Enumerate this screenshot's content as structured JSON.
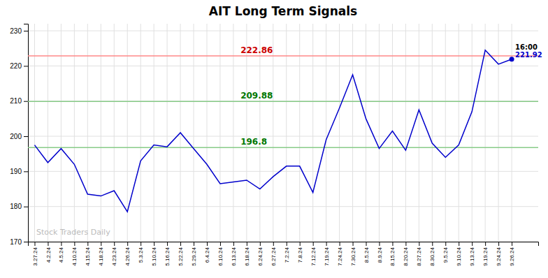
{
  "chart_data": {
    "type": "line",
    "title": "AIT Long Term Signals",
    "categories": [
      "3.27.24",
      "4.2.24",
      "4.5.24",
      "4.10.24",
      "4.15.24",
      "4.18.24",
      "4.23.24",
      "4.26.24",
      "5.3.24",
      "5.10.24",
      "5.16.24",
      "5.22.24",
      "5.29.24",
      "6.4.24",
      "6.10.24",
      "6.13.24",
      "6.18.24",
      "6.24.24",
      "6.27.24",
      "7.2.24",
      "7.8.24",
      "7.12.24",
      "7.19.24",
      "7.24.24",
      "7.30.24",
      "8.5.24",
      "8.9.24",
      "8.15.24",
      "8.20.24",
      "8.27.24",
      "8.30.24",
      "9.5.24",
      "9.10.24",
      "9.13.24",
      "9.19.24",
      "9.24.24",
      "9.26.24"
    ],
    "values": [
      197.5,
      192.5,
      196.5,
      192.0,
      183.5,
      183.0,
      184.5,
      178.5,
      193.0,
      197.5,
      197.0,
      201.0,
      196.5,
      192.0,
      186.5,
      187.0,
      187.5,
      185.0,
      188.5,
      191.5,
      191.5,
      184.0,
      199.0,
      208.0,
      217.5,
      205.0,
      196.5,
      201.5,
      196.0,
      207.5,
      198.0,
      194.0,
      197.5,
      207.0,
      224.5,
      220.5,
      221.92
    ],
    "color": "#0000cc",
    "ylim": [
      170,
      232
    ],
    "yticks": [
      170,
      180,
      190,
      200,
      210,
      220,
      230
    ],
    "grid": true,
    "reference_lines": [
      {
        "value": 222.86,
        "color": "#ff8888",
        "label_color": "#cc0000"
      },
      {
        "value": 209.88,
        "color": "#88cc88",
        "label_color": "#007700"
      },
      {
        "value": 196.8,
        "color": "#88cc88",
        "label_color": "#007700"
      }
    ],
    "end_label": "16:00",
    "end_value": 221.92,
    "watermark": "Stock Traders Daily"
  }
}
